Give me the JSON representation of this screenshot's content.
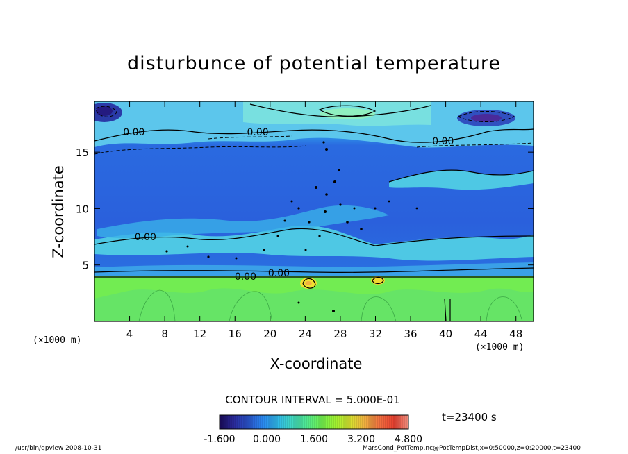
{
  "chart_data": {
    "type": "heatmap",
    "title": "disturbunce of potential temperature",
    "xlabel": "X-coordinate",
    "ylabel": "Z-coordinate",
    "x_unit": "(×1000 m)",
    "y_unit": "(×1000 m)",
    "xlim": [
      0,
      50
    ],
    "ylim": [
      0,
      19.5
    ],
    "xticks": [
      4,
      8,
      12,
      16,
      20,
      24,
      28,
      32,
      36,
      40,
      44,
      48
    ],
    "yticks": [
      5,
      10,
      15
    ],
    "contour_interval_label": "CONTOUR INTERVAL = 5.000E-01",
    "contour_labels": [
      {
        "text": "0.00",
        "x": 4.5,
        "z": 16.8
      },
      {
        "text": "0.00",
        "x": 18.6,
        "z": 16.8
      },
      {
        "text": "0.00",
        "x": 39.7,
        "z": 16.0
      },
      {
        "text": "0.00",
        "x": 5.8,
        "z": 7.5
      },
      {
        "text": "0.00",
        "x": 17.2,
        "z": 4.0
      },
      {
        "text": "0.00",
        "x": 21.0,
        "z": 4.3
      }
    ],
    "colorbar": {
      "min": -1.6,
      "max": 4.8,
      "tick_labels": [
        "-1.600",
        "0.000",
        "1.600",
        "3.200",
        "4.800"
      ],
      "colors": [
        "#1a0a5a",
        "#2a2a9a",
        "#2a55cc",
        "#2a88ee",
        "#30b8e8",
        "#40d8c0",
        "#50e890",
        "#70f050",
        "#a0f030",
        "#d8e030",
        "#f0b040",
        "#f07040",
        "#e84030",
        "#f09080"
      ]
    },
    "time_label": "t=23400 s"
  },
  "footer": {
    "left": "/usr/bin/gpview   2008-10-31",
    "right": "MarsCond_PotTemp.nc@PotTempDist,x=0:50000,z=0:20000,t=23400"
  }
}
